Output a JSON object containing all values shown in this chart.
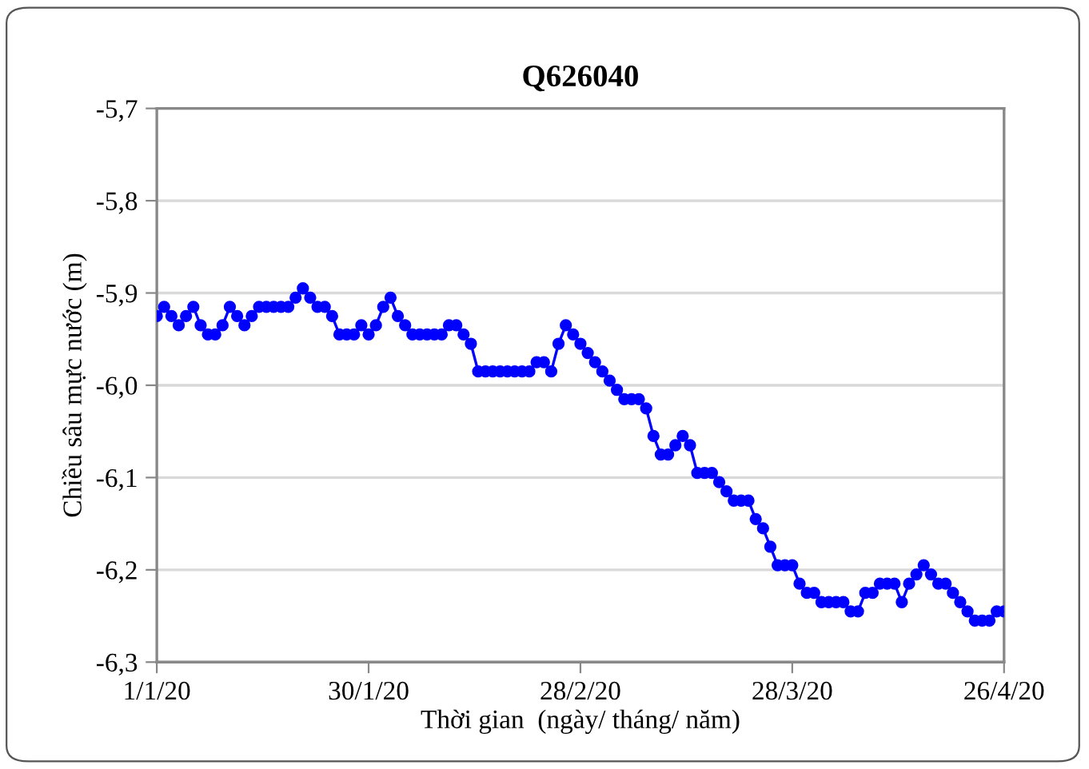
{
  "chart_data": {
    "type": "line",
    "title": "Q626040",
    "xlabel": "Thời gian  (ngày/ tháng/ năm)",
    "ylabel": "Chiều sâu mực nước (m)",
    "x": [
      "2020-01-01",
      "2020-01-02",
      "2020-01-03",
      "2020-01-04",
      "2020-01-05",
      "2020-01-06",
      "2020-01-07",
      "2020-01-08",
      "2020-01-09",
      "2020-01-10",
      "2020-01-11",
      "2020-01-12",
      "2020-01-13",
      "2020-01-14",
      "2020-01-15",
      "2020-01-16",
      "2020-01-17",
      "2020-01-18",
      "2020-01-19",
      "2020-01-20",
      "2020-01-21",
      "2020-01-22",
      "2020-01-23",
      "2020-01-24",
      "2020-01-25",
      "2020-01-26",
      "2020-01-27",
      "2020-01-28",
      "2020-01-29",
      "2020-01-30",
      "2020-01-31",
      "2020-02-01",
      "2020-02-02",
      "2020-02-03",
      "2020-02-04",
      "2020-02-05",
      "2020-02-06",
      "2020-02-07",
      "2020-02-08",
      "2020-02-09",
      "2020-02-10",
      "2020-02-11",
      "2020-02-12",
      "2020-02-13",
      "2020-02-14",
      "2020-02-15",
      "2020-02-16",
      "2020-02-17",
      "2020-02-18",
      "2020-02-19",
      "2020-02-20",
      "2020-02-21",
      "2020-02-22",
      "2020-02-23",
      "2020-02-24",
      "2020-02-25",
      "2020-02-26",
      "2020-02-27",
      "2020-02-28",
      "2020-02-29",
      "2020-03-01",
      "2020-03-02",
      "2020-03-03",
      "2020-03-04",
      "2020-03-05",
      "2020-03-06",
      "2020-03-07",
      "2020-03-08",
      "2020-03-09",
      "2020-03-10",
      "2020-03-11",
      "2020-03-12",
      "2020-03-13",
      "2020-03-14",
      "2020-03-15",
      "2020-03-16",
      "2020-03-17",
      "2020-03-18",
      "2020-03-19",
      "2020-03-20",
      "2020-03-21",
      "2020-03-22",
      "2020-03-23",
      "2020-03-24",
      "2020-03-25",
      "2020-03-26",
      "2020-03-27",
      "2020-03-28",
      "2020-03-29",
      "2020-03-30",
      "2020-03-31",
      "2020-04-01",
      "2020-04-02",
      "2020-04-03",
      "2020-04-04",
      "2020-04-05",
      "2020-04-06",
      "2020-04-07",
      "2020-04-08",
      "2020-04-09",
      "2020-04-10",
      "2020-04-11",
      "2020-04-12",
      "2020-04-13",
      "2020-04-14",
      "2020-04-15",
      "2020-04-16",
      "2020-04-17",
      "2020-04-18",
      "2020-04-19",
      "2020-04-20",
      "2020-04-21",
      "2020-04-22",
      "2020-04-23",
      "2020-04-24",
      "2020-04-25",
      "2020-04-26"
    ],
    "series": [
      {
        "color": "#0000ff",
        "values": [
          -5.925,
          -5.915,
          -5.925,
          -5.935,
          -5.925,
          -5.915,
          -5.935,
          -5.945,
          -5.945,
          -5.935,
          -5.915,
          -5.925,
          -5.935,
          -5.925,
          -5.915,
          -5.915,
          -5.915,
          -5.915,
          -5.915,
          -5.905,
          -5.895,
          -5.905,
          -5.915,
          -5.915,
          -5.925,
          -5.945,
          -5.945,
          -5.945,
          -5.935,
          -5.945,
          -5.935,
          -5.915,
          -5.905,
          -5.925,
          -5.935,
          -5.945,
          -5.945,
          -5.945,
          -5.945,
          -5.945,
          -5.935,
          -5.935,
          -5.945,
          -5.955,
          -5.985,
          -5.985,
          -5.985,
          -5.985,
          -5.985,
          -5.985,
          -5.985,
          -5.985,
          -5.975,
          -5.975,
          -5.985,
          -5.955,
          -5.935,
          -5.945,
          -5.955,
          -5.965,
          -5.975,
          -5.985,
          -5.995,
          -6.005,
          -6.015,
          -6.015,
          -6.015,
          -6.025,
          -6.055,
          -6.075,
          -6.075,
          -6.065,
          -6.055,
          -6.065,
          -6.095,
          -6.095,
          -6.095,
          -6.105,
          -6.115,
          -6.125,
          -6.125,
          -6.125,
          -6.145,
          -6.155,
          -6.175,
          -6.195,
          -6.195,
          -6.195,
          -6.215,
          -6.225,
          -6.225,
          -6.235,
          -6.235,
          -6.235,
          -6.235,
          -6.245,
          -6.245,
          -6.225,
          -6.225,
          -6.215,
          -6.215,
          -6.215,
          -6.235,
          -6.215,
          -6.205,
          -6.195,
          -6.205,
          -6.215,
          -6.215,
          -6.225,
          -6.235,
          -6.245,
          -6.255,
          -6.255,
          -6.255,
          -6.245,
          -6.245
        ]
      }
    ],
    "xlim": [
      "2020-01-01",
      "2020-04-26"
    ],
    "xticks": [
      {
        "value": "2020-01-01",
        "label": "1/1/20"
      },
      {
        "value": "2020-01-30",
        "label": "30/1/20"
      },
      {
        "value": "2020-02-28",
        "label": "28/2/20"
      },
      {
        "value": "2020-03-28",
        "label": "28/3/20"
      },
      {
        "value": "2020-04-26",
        "label": "26/4/20"
      }
    ],
    "ylim": [
      -6.3,
      -5.7
    ],
    "yticks": [
      {
        "value": -6.3,
        "label": "-6,3"
      },
      {
        "value": -6.2,
        "label": "-6,2"
      },
      {
        "value": -6.1,
        "label": "-6,1"
      },
      {
        "value": -6.0,
        "label": "-6,0"
      },
      {
        "value": -5.9,
        "label": "-5,9"
      },
      {
        "value": -5.8,
        "label": "-5,8"
      },
      {
        "value": -5.7,
        "label": "-5,7"
      }
    ],
    "grid": "y",
    "marker": "circle",
    "line_style": "solid",
    "legend": false
  }
}
